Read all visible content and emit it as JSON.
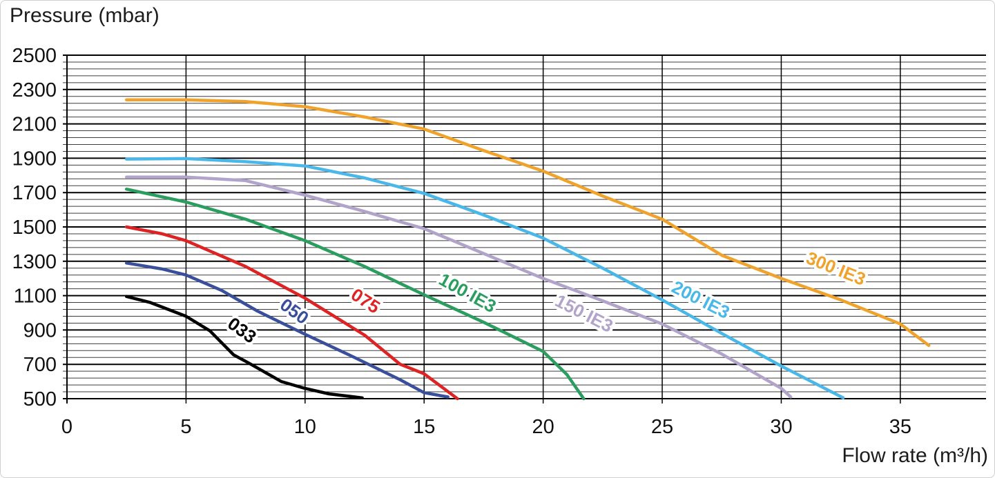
{
  "page": {
    "title": "Pressure (mbar)",
    "xlabel": "Flow rate (m³/h)"
  },
  "chart_data": {
    "type": "line",
    "title": "Pressure (mbar)",
    "xlabel": "Flow rate (m³/h)",
    "ylabel": "Pressure (mbar)",
    "xlim": [
      0,
      38.6
    ],
    "ylim": [
      500,
      2500
    ],
    "x_ticks": [
      0,
      5,
      10,
      15,
      20,
      25,
      30,
      35
    ],
    "y_ticks": [
      500,
      700,
      900,
      1100,
      1300,
      1500,
      1700,
      1900,
      2100,
      2300,
      2500
    ],
    "y_minor_step": 40,
    "grid": true,
    "legend_position": "inline-labels",
    "series": [
      {
        "name": "033",
        "color": "#000000",
        "label": {
          "x": 7.2,
          "y": 870,
          "rotation": 36
        },
        "points": [
          [
            2.5,
            1095
          ],
          [
            3.5,
            1060
          ],
          [
            5,
            980
          ],
          [
            6,
            895
          ],
          [
            7,
            755
          ],
          [
            7.6,
            710
          ],
          [
            9,
            600
          ],
          [
            10,
            560
          ],
          [
            11,
            528
          ],
          [
            12.4,
            505
          ]
        ]
      },
      {
        "name": "050",
        "color": "#3a4f9b",
        "label": {
          "x": 9.4,
          "y": 980,
          "rotation": 36
        },
        "points": [
          [
            2.5,
            1290
          ],
          [
            4,
            1255
          ],
          [
            5,
            1220
          ],
          [
            6.5,
            1130
          ],
          [
            8,
            1010
          ],
          [
            10,
            875
          ],
          [
            12,
            745
          ],
          [
            14,
            610
          ],
          [
            15,
            535
          ],
          [
            16,
            510
          ]
        ]
      },
      {
        "name": "075",
        "color": "#dd2323",
        "label": {
          "x": 12.4,
          "y": 1040,
          "rotation": 33
        },
        "points": [
          [
            2.5,
            1500
          ],
          [
            4,
            1460
          ],
          [
            5,
            1420
          ],
          [
            7.5,
            1270
          ],
          [
            10,
            1085
          ],
          [
            12.5,
            870
          ],
          [
            14,
            700
          ],
          [
            15,
            645
          ],
          [
            16.4,
            500
          ]
        ]
      },
      {
        "name": "100 IE3",
        "color": "#2a9d5f",
        "label": {
          "x": 16.7,
          "y": 1085,
          "rotation": 29
        },
        "points": [
          [
            2.5,
            1720
          ],
          [
            5,
            1645
          ],
          [
            7.5,
            1545
          ],
          [
            10,
            1420
          ],
          [
            12.5,
            1270
          ],
          [
            15,
            1105
          ],
          [
            17.5,
            945
          ],
          [
            20,
            775
          ],
          [
            21,
            640
          ],
          [
            21.7,
            500
          ]
        ]
      },
      {
        "name": "150 IE3",
        "color": "#b2a3cb",
        "label": {
          "x": 21.6,
          "y": 965,
          "rotation": 27
        },
        "points": [
          [
            2.5,
            1790
          ],
          [
            5,
            1790
          ],
          [
            7.5,
            1770
          ],
          [
            10,
            1685
          ],
          [
            12.5,
            1590
          ],
          [
            15,
            1490
          ],
          [
            17.5,
            1345
          ],
          [
            20,
            1200
          ],
          [
            22.5,
            1070
          ],
          [
            25,
            935
          ],
          [
            27.5,
            760
          ],
          [
            30,
            560
          ],
          [
            30.4,
            510
          ]
        ]
      },
      {
        "name": "200 IE3",
        "color": "#49b8e8",
        "label": {
          "x": 26.5,
          "y": 1045,
          "rotation": 27
        },
        "points": [
          [
            2.5,
            1895
          ],
          [
            5,
            1898
          ],
          [
            7.5,
            1880
          ],
          [
            10,
            1855
          ],
          [
            12.5,
            1785
          ],
          [
            15,
            1695
          ],
          [
            17.5,
            1570
          ],
          [
            20,
            1435
          ],
          [
            22.5,
            1260
          ],
          [
            25,
            1075
          ],
          [
            27.5,
            880
          ],
          [
            30,
            690
          ],
          [
            32.6,
            505
          ]
        ]
      },
      {
        "name": "300 IE3",
        "color": "#efa32c",
        "label": {
          "x": 32.2,
          "y": 1225,
          "rotation": 22
        },
        "points": [
          [
            2.5,
            2240
          ],
          [
            5,
            2240
          ],
          [
            7.5,
            2230
          ],
          [
            10,
            2200
          ],
          [
            12.5,
            2140
          ],
          [
            15,
            2070
          ],
          [
            17.5,
            1945
          ],
          [
            20,
            1825
          ],
          [
            22.5,
            1680
          ],
          [
            25,
            1545
          ],
          [
            27.5,
            1335
          ],
          [
            30,
            1200
          ],
          [
            32.5,
            1075
          ],
          [
            35,
            935
          ],
          [
            36.2,
            810
          ]
        ]
      }
    ]
  }
}
